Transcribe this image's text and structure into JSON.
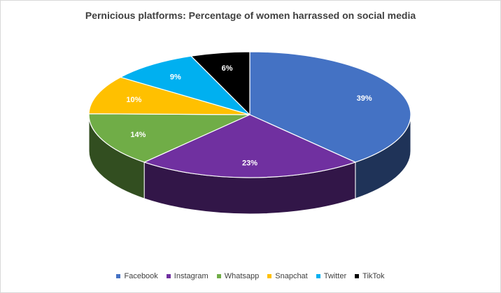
{
  "chart_data": {
    "type": "pie",
    "title": "Pernicious platforms: Percentage of women harrassed on social media",
    "categories": [
      "Facebook",
      "Instagram",
      "Whatsapp",
      "Snapchat",
      "Twitter",
      "TikTok"
    ],
    "values": [
      39,
      23,
      14,
      10,
      9,
      6
    ],
    "value_labels": [
      "39%",
      "23%",
      "14%",
      "10%",
      "9%",
      "6%"
    ],
    "colors": [
      "#4472c4",
      "#7030a0",
      "#70ad47",
      "#ffc000",
      "#00b0f0",
      "#000000"
    ],
    "label_colors": [
      "#ffffff",
      "#ffffff",
      "#ffffff",
      "#ffffff",
      "#ffffff",
      "#ffffff"
    ],
    "legend": "bottom",
    "style": "3d"
  }
}
